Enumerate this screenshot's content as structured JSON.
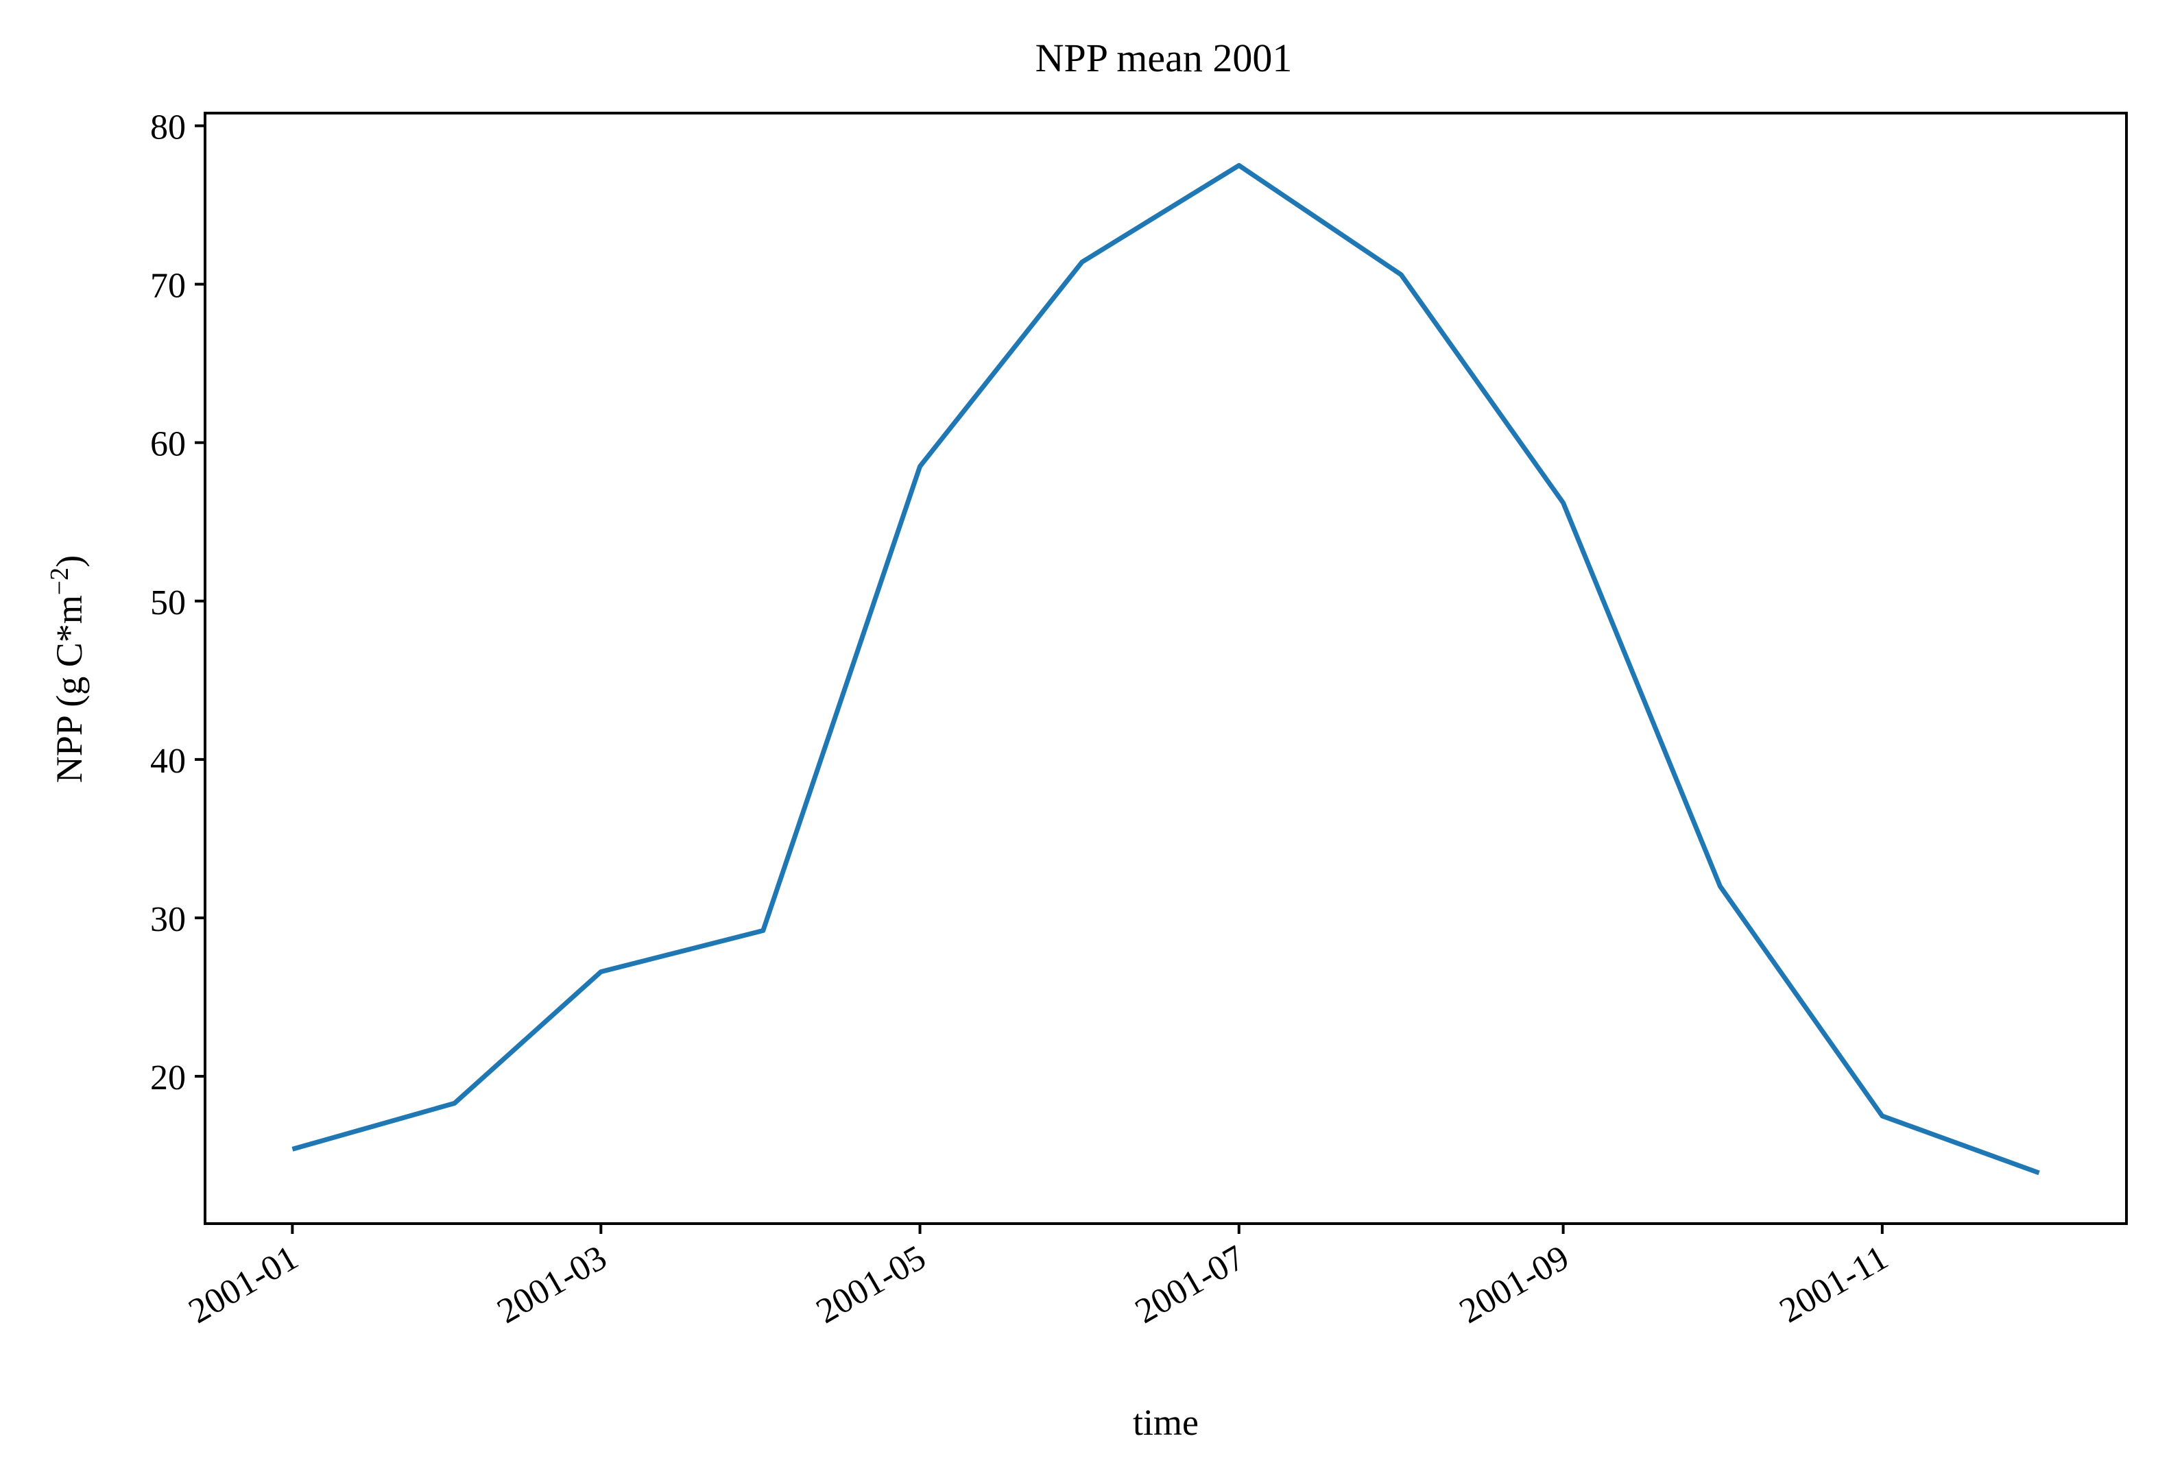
{
  "chart_data": {
    "type": "line",
    "title": "NPP mean 2001",
    "xlabel": "time",
    "ylabel": "NPP (g C*m",
    "ylabel_superscript": "−2",
    "ylabel_close": ")",
    "x": [
      "2001-01-01",
      "2001-02-01",
      "2001-03-01",
      "2001-04-01",
      "2001-05-01",
      "2001-06-01",
      "2001-07-01",
      "2001-08-01",
      "2001-09-01",
      "2001-10-01",
      "2001-11-01",
      "2001-12-01"
    ],
    "series": [
      {
        "values": [
          15.4,
          18.3,
          26.6,
          29.2,
          58.5,
          71.4,
          77.5,
          70.6,
          56.2,
          32.0,
          17.5,
          13.9
        ]
      }
    ],
    "xticks": [
      "2001-01",
      "2001-03",
      "2001-05",
      "2001-07",
      "2001-09",
      "2001-11"
    ],
    "xtick_dates": [
      "2001-01-01",
      "2001-03-01",
      "2001-05-01",
      "2001-07-01",
      "2001-09-01",
      "2001-11-01"
    ],
    "xlim": [
      "2001-01-01",
      "2001-12-01"
    ],
    "ylim": [
      10.7,
      80.8
    ],
    "yticks": [
      20,
      30,
      40,
      50,
      60,
      70,
      80
    ],
    "line_color": "#1f77b4",
    "grid": false
  }
}
